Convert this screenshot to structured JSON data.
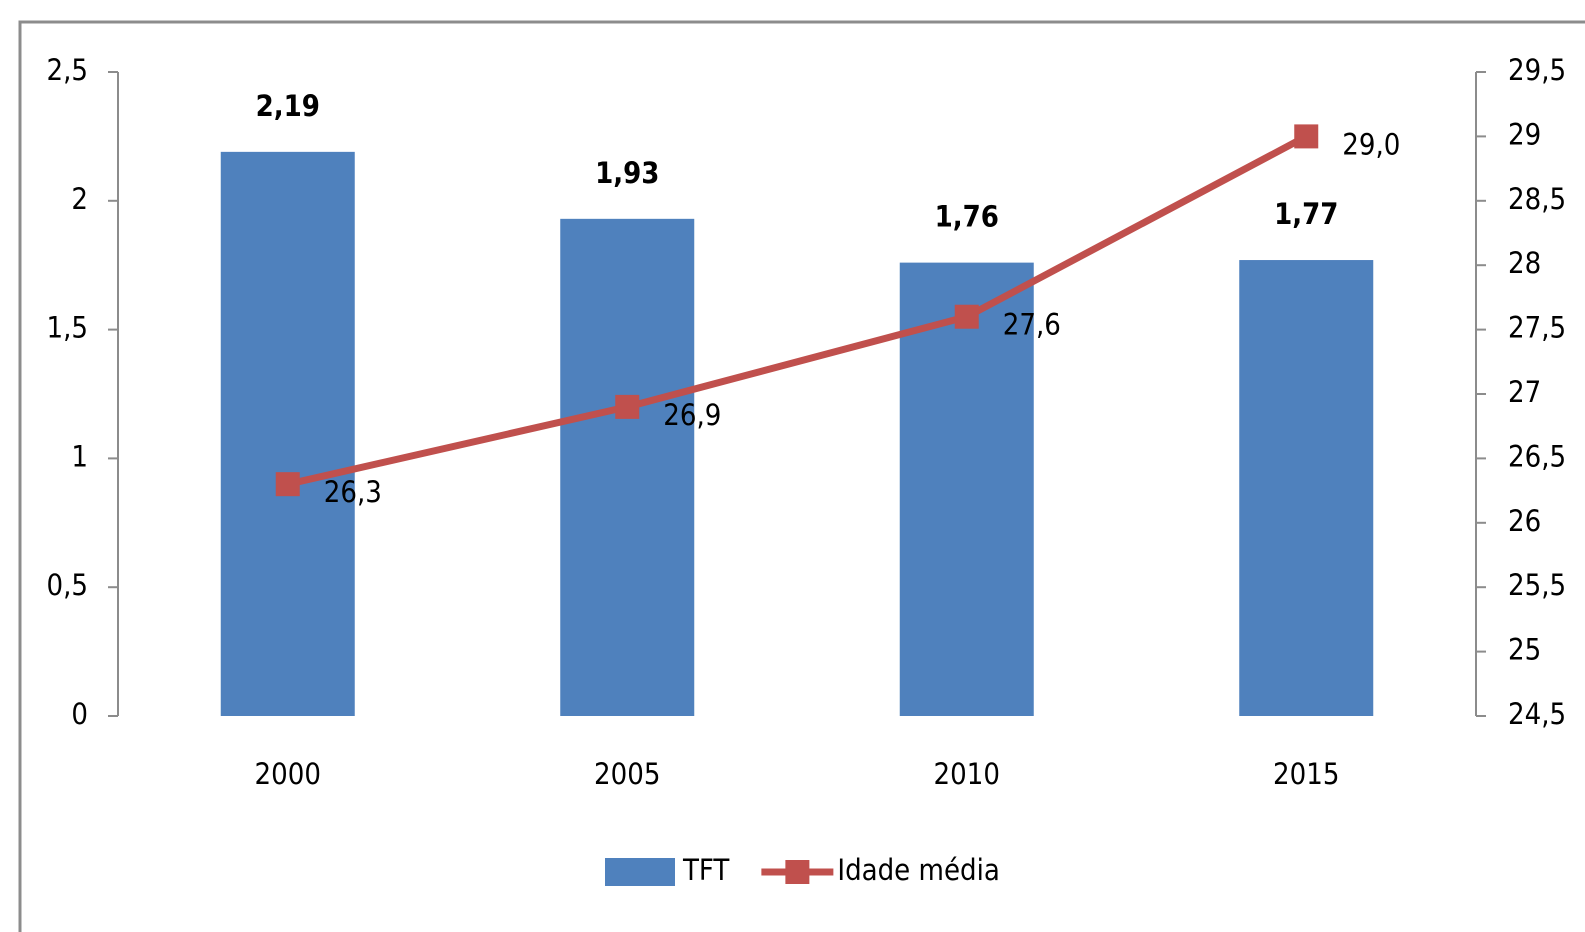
{
  "chart_data": {
    "type": "bar",
    "categories": [
      "2000",
      "2005",
      "2010",
      "2015"
    ],
    "series": [
      {
        "name": "TFT",
        "type": "bar",
        "color": "#4f81bd",
        "values": [
          2.19,
          1.93,
          1.76,
          1.77
        ],
        "value_labels": [
          "2,19",
          "1,93",
          "1,76",
          "1,77"
        ]
      },
      {
        "name": "Idade média",
        "type": "line",
        "axis": "y2",
        "color": "#c0504d",
        "values": [
          26.3,
          26.9,
          27.6,
          29.0
        ],
        "value_labels": [
          "26,3",
          "26,9",
          "27,6",
          "29,0"
        ]
      }
    ],
    "ylim": [
      0,
      2.5
    ],
    "yticks": [
      0,
      {
        "value": 0.5,
        "label": "0,5"
      },
      1,
      {
        "value": 1.5,
        "label": "1,5"
      },
      2,
      {
        "value": 2.5,
        "label": "2,5"
      }
    ],
    "y2lim": [
      24.5,
      29.5
    ],
    "y2ticks": [
      {
        "value": 24.5,
        "label": "24,5"
      },
      25,
      {
        "value": 25.5,
        "label": "25,5"
      },
      26,
      {
        "value": 26.5,
        "label": "26,5"
      },
      27,
      {
        "value": 27.5,
        "label": "27,5"
      },
      28,
      {
        "value": 28.5,
        "label": "28,5"
      },
      29,
      {
        "value": 29.5,
        "label": "29,5"
      }
    ],
    "legend": "bottom"
  }
}
